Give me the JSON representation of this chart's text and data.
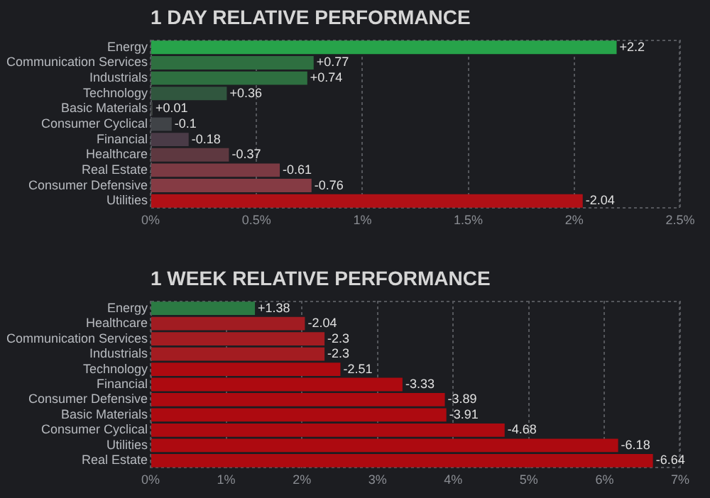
{
  "chart_data": [
    {
      "type": "bar",
      "orientation": "horizontal",
      "title": "1 DAY RELATIVE PERFORMANCE",
      "categories": [
        "Energy",
        "Communication Services",
        "Industrials",
        "Technology",
        "Basic Materials",
        "Consumer Cyclical",
        "Financial",
        "Healthcare",
        "Real Estate",
        "Consumer Defensive",
        "Utilities"
      ],
      "values": [
        2.2,
        0.77,
        0.74,
        0.36,
        0.01,
        -0.1,
        -0.18,
        -0.37,
        -0.61,
        -0.76,
        -2.04
      ],
      "base": [
        0,
        0,
        0,
        0,
        0,
        0.1,
        0.18,
        0.37,
        0.61,
        0.76,
        2.04
      ],
      "value_labels": [
        "+2.2",
        "+0.77",
        "+0.74",
        "+0.36",
        "+0.01",
        "-0.1",
        "-0.18",
        "-0.37",
        "-0.61",
        "-0.76",
        "-2.04"
      ],
      "colors": [
        "#27a34a",
        "#2e6f40",
        "#2e6f40",
        "#30563e",
        "#3a3e3d",
        "#404347",
        "#4a3b47",
        "#5e3840",
        "#7b3a43",
        "#853b44",
        "#b01016"
      ],
      "xlim": [
        0,
        2.5
      ],
      "xticks": [
        {
          "value": 0,
          "label": "0%"
        },
        {
          "value": 0.5,
          "label": "0.5%"
        },
        {
          "value": 1,
          "label": "1%"
        },
        {
          "value": 1.5,
          "label": "1.5%"
        },
        {
          "value": 2,
          "label": "2%"
        },
        {
          "value": 2.5,
          "label": "2.5%"
        }
      ],
      "grid": "x"
    },
    {
      "type": "bar",
      "orientation": "horizontal",
      "title": "1 WEEK RELATIVE PERFORMANCE",
      "categories": [
        "Energy",
        "Healthcare",
        "Communication Services",
        "Industrials",
        "Technology",
        "Financial",
        "Consumer Defensive",
        "Basic Materials",
        "Consumer Cyclical",
        "Utilities",
        "Real Estate"
      ],
      "values": [
        1.38,
        -2.04,
        -2.3,
        -2.3,
        -2.51,
        -3.33,
        -3.89,
        -3.91,
        -4.68,
        -6.18,
        -6.64
      ],
      "base": [
        0,
        2.04,
        2.3,
        2.3,
        2.51,
        3.33,
        3.89,
        3.91,
        4.68,
        6.18,
        6.64
      ],
      "value_labels": [
        "+1.38",
        "-2.04",
        "-2.3",
        "-2.3",
        "-2.51",
        "-3.33",
        "-3.89",
        "-3.91",
        "-4.68",
        "-6.18",
        "-6.64"
      ],
      "colors": [
        "#2b7a43",
        "#a11c22",
        "#a31c21",
        "#a31c21",
        "#ad0a10",
        "#ad0a10",
        "#ad0a10",
        "#ad0a10",
        "#ad0a10",
        "#ad0a10",
        "#ad0a10"
      ],
      "xlim": [
        0,
        7
      ],
      "xticks": [
        {
          "value": 0,
          "label": "0%"
        },
        {
          "value": 1,
          "label": "1%"
        },
        {
          "value": 2,
          "label": "2%"
        },
        {
          "value": 3,
          "label": "3%"
        },
        {
          "value": 4,
          "label": "4%"
        },
        {
          "value": 5,
          "label": "5%"
        },
        {
          "value": 6,
          "label": "6%"
        },
        {
          "value": 7,
          "label": "7%"
        }
      ],
      "grid": "x"
    }
  ]
}
